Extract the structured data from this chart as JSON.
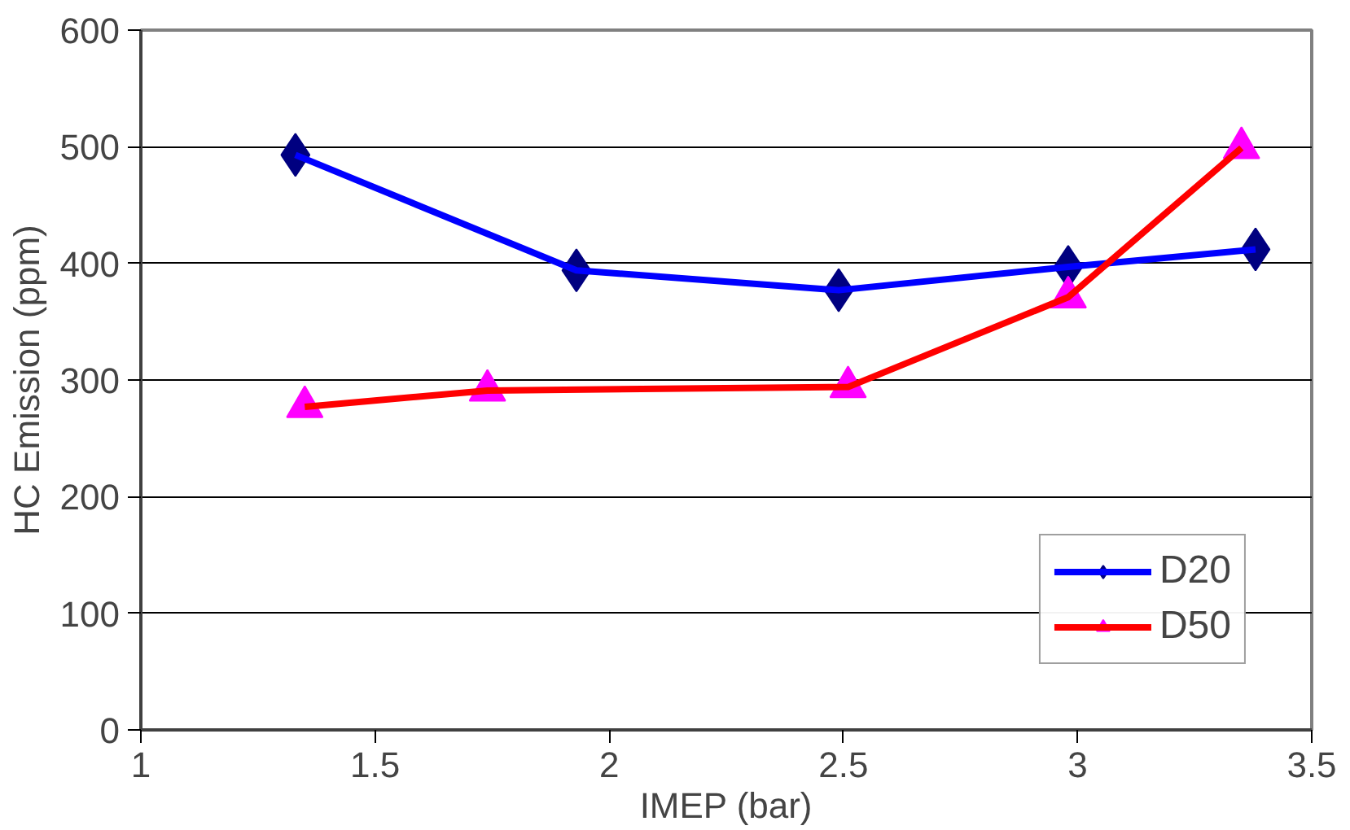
{
  "chart_data": {
    "type": "line",
    "xlabel": "IMEP (bar)",
    "ylabel": "HC Emission (ppm)",
    "xlim": [
      1,
      3.5
    ],
    "xticks": [
      1,
      1.5,
      2,
      2.5,
      3,
      3.5
    ],
    "ylim": [
      0,
      600
    ],
    "yticks": [
      0,
      100,
      200,
      300,
      400,
      500,
      600
    ],
    "grid": "y",
    "legend": "bottom right",
    "line_style": "solid",
    "series": [
      {
        "name": "D20",
        "color": "#0000ff",
        "colors": [
          "#000080",
          "#000080",
          "#000080",
          "#000080",
          "#000080"
        ],
        "marker": "diamond",
        "x": [
          1.33,
          1.93,
          2.49,
          2.98,
          3.38
        ],
        "values": [
          493,
          394,
          377,
          397,
          412
        ]
      },
      {
        "name": "D50",
        "color": "#ff0000",
        "colors": [
          "#ff00ff",
          "#ff00ff",
          "#ff00ff",
          "#ff00ff",
          "#ff00ff"
        ],
        "marker": "triangle",
        "x": [
          1.35,
          1.74,
          2.51,
          2.98,
          3.35
        ],
        "values": [
          277,
          291,
          294,
          371,
          499
        ]
      }
    ]
  }
}
